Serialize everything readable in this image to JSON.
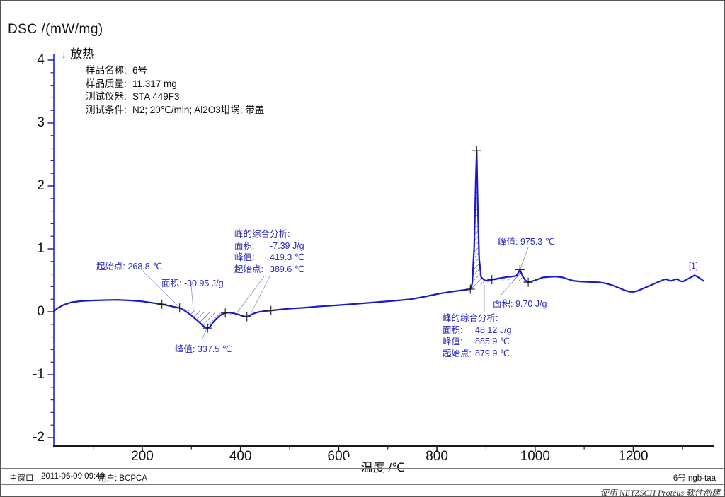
{
  "title": {
    "y_axis_unit": "DSC /(mW/mg)",
    "exo": "↓ 放热"
  },
  "sample_info": {
    "lines": [
      {
        "label": "样品名称:",
        "value": "6号"
      },
      {
        "label": "样品质量:",
        "value": "11.317 mg"
      },
      {
        "label": "测试仪器:",
        "value": "STA 449F3"
      },
      {
        "label": "测试条件:",
        "value": "N2; 20℃/min; Al2O3坩埚; 带盖"
      }
    ]
  },
  "annotations": {
    "peak1_onset": "起始点: 268.8 ℃",
    "peak1_area": "面积: -30.95 J/g",
    "peak1_value": "峰值: 337.5 ℃",
    "block2": {
      "header": "峰的综合分析:",
      "rows": [
        [
          "面积:",
          "-7.39 J/g"
        ],
        [
          "峰值:",
          "419.3 ℃"
        ],
        [
          "起始点:",
          "389.6 ℃"
        ]
      ]
    },
    "peak4_value": "峰值: 975.3 ℃",
    "peak4_area": "面积: 9.70 J/g",
    "block3": {
      "header": "峰的综合分析:",
      "rows": [
        [
          "面积:",
          "48.12 J/g"
        ],
        [
          "峰值:",
          "885.9 ℃"
        ],
        [
          "起始点:",
          "879.9 ℃"
        ]
      ]
    },
    "curve_index": "[1]"
  },
  "axes": {
    "x_label": "温度 /℃"
  },
  "status_bar": {
    "window": "主窗口",
    "datetime": "2011-06-09 09:49",
    "user": "用户: BCPCA",
    "filename": "6号.ngb-taa"
  },
  "watermark": "使用 NETZSCH Proteus 软件创建",
  "colors": {
    "curve": "#1a1acc",
    "annotation": "#2a2abb",
    "axis_y": "#2222cc",
    "axis_x": "#1a1a1a",
    "hatch": "#6a6abd",
    "leader": "#8a8ab8",
    "marker": "#1a1a1a"
  },
  "chart_data": {
    "type": "line",
    "title": "DSC /(mW/mg)",
    "xlabel": "温度 /℃",
    "ylabel": "DSC /(mW/mg)",
    "xlim": [
      20,
      1365
    ],
    "ylim": [
      -2.13,
      4.1
    ],
    "x_ticks": [
      200,
      400,
      600,
      800,
      1000,
      1200
    ],
    "y_ticks": [
      -2,
      -1,
      0,
      1,
      2,
      3,
      4
    ],
    "x_minor_step": 100,
    "y_minor_step": 0.2,
    "grid": false,
    "exothermic_direction": "down",
    "peaks": [
      {
        "onset_c": 268.8,
        "peak_c": 337.5,
        "area_j_per_g": -30.95
      },
      {
        "onset_c": 389.6,
        "peak_c": 419.3,
        "area_j_per_g": -7.39
      },
      {
        "onset_c": 879.9,
        "peak_c": 885.9,
        "area_j_per_g": 48.12
      },
      {
        "peak_c": 975.3,
        "area_j_per_g": 9.7
      }
    ],
    "hatch_regions": [
      [
        276,
        413
      ],
      [
        868,
        912
      ],
      [
        912,
        986
      ]
    ],
    "markers": [
      [
        240,
        0.12
      ],
      [
        276,
        0.06
      ],
      [
        333,
        -0.26
      ],
      [
        369,
        -0.02
      ],
      [
        413,
        -0.08
      ],
      [
        462,
        0.02
      ],
      [
        868,
        0.36
      ],
      [
        881,
        2.56
      ],
      [
        912,
        0.51
      ],
      [
        969,
        0.67
      ],
      [
        986,
        0.47
      ]
    ],
    "series": [
      {
        "name": "DSC",
        "points": [
          [
            20,
            0.01
          ],
          [
            28,
            0.06
          ],
          [
            40,
            0.11
          ],
          [
            55,
            0.15
          ],
          [
            75,
            0.17
          ],
          [
            100,
            0.18
          ],
          [
            125,
            0.185
          ],
          [
            150,
            0.19
          ],
          [
            175,
            0.18
          ],
          [
            200,
            0.165
          ],
          [
            222,
            0.14
          ],
          [
            240,
            0.12
          ],
          [
            258,
            0.09
          ],
          [
            276,
            0.06
          ],
          [
            288,
            0.01
          ],
          [
            300,
            -0.06
          ],
          [
            312,
            -0.14
          ],
          [
            322,
            -0.21
          ],
          [
            328,
            -0.25
          ],
          [
            333,
            -0.26
          ],
          [
            338,
            -0.235
          ],
          [
            344,
            -0.17
          ],
          [
            350,
            -0.12
          ],
          [
            358,
            -0.06
          ],
          [
            365,
            -0.03
          ],
          [
            369,
            -0.02
          ],
          [
            374,
            -0.013
          ],
          [
            380,
            -0.015
          ],
          [
            386,
            -0.025
          ],
          [
            394,
            -0.04
          ],
          [
            403,
            -0.065
          ],
          [
            409,
            -0.075
          ],
          [
            413,
            -0.08
          ],
          [
            419,
            -0.06
          ],
          [
            426,
            -0.03
          ],
          [
            436,
            -0.005
          ],
          [
            448,
            0.01
          ],
          [
            462,
            0.02
          ],
          [
            480,
            0.035
          ],
          [
            500,
            0.05
          ],
          [
            530,
            0.065
          ],
          [
            560,
            0.085
          ],
          [
            600,
            0.105
          ],
          [
            633,
            0.125
          ],
          [
            665,
            0.145
          ],
          [
            690,
            0.16
          ],
          [
            720,
            0.18
          ],
          [
            748,
            0.2
          ],
          [
            775,
            0.24
          ],
          [
            806,
            0.29
          ],
          [
            830,
            0.32
          ],
          [
            849,
            0.34
          ],
          [
            860,
            0.35
          ],
          [
            868,
            0.36
          ],
          [
            872,
            0.45
          ],
          [
            876,
            1.05
          ],
          [
            879,
            2.05
          ],
          [
            881,
            2.56
          ],
          [
            883,
            1.75
          ],
          [
            886,
            0.85
          ],
          [
            890,
            0.55
          ],
          [
            897,
            0.5
          ],
          [
            905,
            0.49
          ],
          [
            912,
            0.51
          ],
          [
            925,
            0.53
          ],
          [
            940,
            0.55
          ],
          [
            952,
            0.56
          ],
          [
            962,
            0.57
          ],
          [
            969,
            0.67
          ],
          [
            975,
            0.56
          ],
          [
            980,
            0.5
          ],
          [
            986,
            0.47
          ],
          [
            1000,
            0.5
          ],
          [
            1015,
            0.545
          ],
          [
            1029,
            0.555
          ],
          [
            1043,
            0.56
          ],
          [
            1057,
            0.545
          ],
          [
            1070,
            0.51
          ],
          [
            1080,
            0.49
          ],
          [
            1094,
            0.48
          ],
          [
            1110,
            0.475
          ],
          [
            1128,
            0.47
          ],
          [
            1142,
            0.455
          ],
          [
            1158,
            0.42
          ],
          [
            1172,
            0.375
          ],
          [
            1183,
            0.34
          ],
          [
            1192,
            0.32
          ],
          [
            1199,
            0.315
          ],
          [
            1208,
            0.33
          ],
          [
            1220,
            0.37
          ],
          [
            1235,
            0.42
          ],
          [
            1250,
            0.47
          ],
          [
            1262,
            0.51
          ],
          [
            1267,
            0.52
          ],
          [
            1272,
            0.5
          ],
          [
            1277,
            0.49
          ],
          [
            1283,
            0.51
          ],
          [
            1289,
            0.52
          ],
          [
            1295,
            0.49
          ],
          [
            1301,
            0.48
          ],
          [
            1307,
            0.505
          ],
          [
            1313,
            0.53
          ],
          [
            1318,
            0.55
          ],
          [
            1325,
            0.58
          ],
          [
            1330,
            0.56
          ],
          [
            1336,
            0.53
          ],
          [
            1343,
            0.49
          ]
        ]
      }
    ]
  }
}
